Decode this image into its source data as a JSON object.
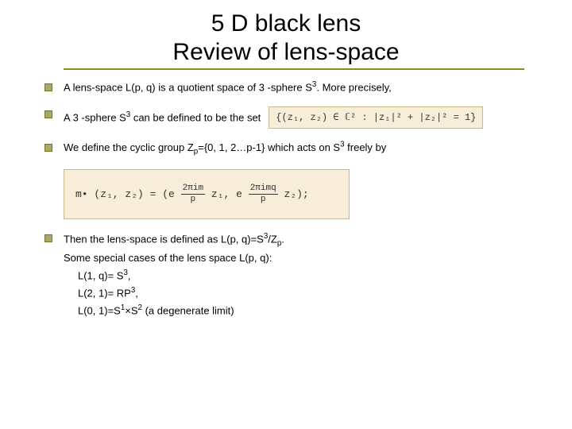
{
  "title": {
    "line1": "5 D black lens",
    "line2": "Review of lens-space"
  },
  "bullets": {
    "b1": "A lens-space L(p, q) is a quotient space of 3 -sphere S",
    "b1_sup": "3",
    "b1_tail": ". More precisely,",
    "b2_pre": "A 3 -sphere S",
    "b2_sup": "3",
    "b2_mid": " can be defined to be the set",
    "formula1": "{(z₁, z₂) ∈ ℂ² : |z₁|² + |z₂|² = 1}",
    "b3_pre": "We define the cyclic group Z",
    "b3_sub": "p",
    "b3_mid": "={0, 1, 2…p-1}  which acts on S",
    "b3_sup": "3",
    "b3_tail": " freely by",
    "formula2_lhs": "m• (z₁, z₂) = (e",
    "formula2_frac1_num": "2πim",
    "formula2_frac1_den": "p",
    "formula2_mid": " z₁, e",
    "formula2_frac2_num": "2πimq",
    "formula2_frac2_den": "p",
    "formula2_rhs": " z₂);"
  },
  "final": {
    "l1_pre": "Then the lens-space is defined as L(p, q)=S",
    "l1_sup": "3",
    "l1_mid": "/Z",
    "l1_sub": "p",
    "l1_tail": ".",
    "l2": "Some special cases of the lens space L(p, q):",
    "l3_pre": "L(1, q)= S",
    "l3_sup": "3",
    "l3_tail": ",",
    "l4_pre": "L(2, 1)= RP",
    "l4_sup": "3",
    "l4_tail": ",",
    "l5_pre": "L(0, 1)=S",
    "l5_sup1": "1",
    "l5_mid": "×S",
    "l5_sup2": "2",
    "l5_tail": " (a degenerate limit)"
  },
  "colors": {
    "underline": "#8a8a2a",
    "bullet_fill": "#a8a86a",
    "bullet_border": "#777720",
    "formula_bg": "#f8edd8",
    "formula_border": "#c9b98a"
  }
}
